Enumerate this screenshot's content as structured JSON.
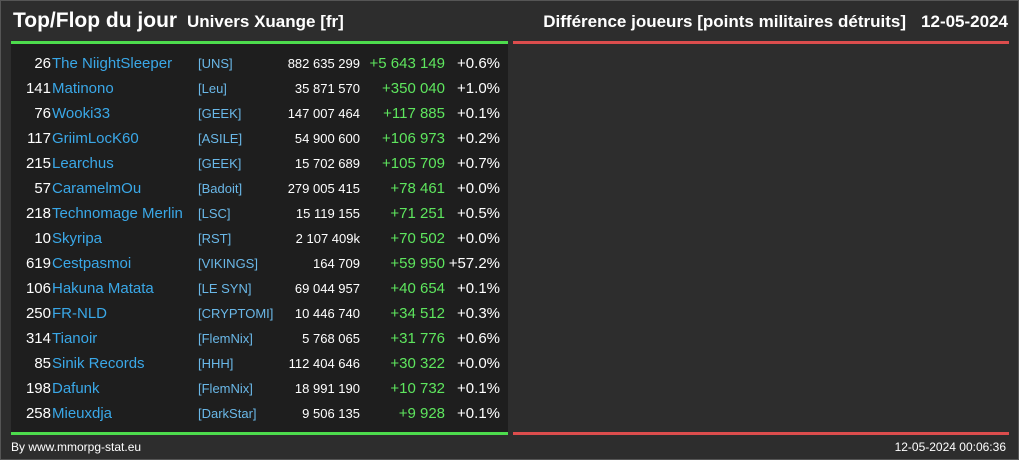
{
  "header": {
    "title": "Top/Flop du jour",
    "universe": "Univers Xuange [fr]",
    "subtitle": "Différence joueurs [points militaires détruits]",
    "date": "12-05-2024"
  },
  "colors": {
    "top_accent": "#4ddc4d",
    "flop_accent": "#dc4d4d",
    "name": "#3aa8e8",
    "positive": "#5ee65e"
  },
  "rows": [
    {
      "rank": "26",
      "name": "The NiightSleeper",
      "alliance": "[UNS]",
      "points": "882 635 299",
      "diff": "+5 643 149",
      "pct": "+0.6%"
    },
    {
      "rank": "141",
      "name": "Matinono",
      "alliance": "[Leu]",
      "points": "35 871 570",
      "diff": "+350 040",
      "pct": "+1.0%"
    },
    {
      "rank": "76",
      "name": "Wooki33",
      "alliance": "[GEEK]",
      "points": "147 007 464",
      "diff": "+117 885",
      "pct": "+0.1%"
    },
    {
      "rank": "117",
      "name": "GriimLocK60",
      "alliance": "[ASILE]",
      "points": "54 900 600",
      "diff": "+106 973",
      "pct": "+0.2%"
    },
    {
      "rank": "215",
      "name": "Learchus",
      "alliance": "[GEEK]",
      "points": "15 702 689",
      "diff": "+105 709",
      "pct": "+0.7%"
    },
    {
      "rank": "57",
      "name": "CaramelmOu",
      "alliance": "[Badoit]",
      "points": "279 005 415",
      "diff": "+78 461",
      "pct": "+0.0%"
    },
    {
      "rank": "218",
      "name": "Technomage Merlin",
      "alliance": "[LSC]",
      "points": "15 119 155",
      "diff": "+71 251",
      "pct": "+0.5%"
    },
    {
      "rank": "10",
      "name": "Skyripa",
      "alliance": "[RST]",
      "points": "2 107 409k",
      "diff": "+70 502",
      "pct": "+0.0%"
    },
    {
      "rank": "619",
      "name": "Cestpasmoi",
      "alliance": "[VIKINGS]",
      "points": "164 709",
      "diff": "+59 950",
      "pct": "+57.2%"
    },
    {
      "rank": "106",
      "name": "Hakuna Matata",
      "alliance": "[LE SYN]",
      "points": "69 044 957",
      "diff": "+40 654",
      "pct": "+0.1%"
    },
    {
      "rank": "250",
      "name": "FR-NLD",
      "alliance": "[CRYPTOMI]",
      "points": "10 446 740",
      "diff": "+34 512",
      "pct": "+0.3%"
    },
    {
      "rank": "314",
      "name": "Tianoir",
      "alliance": "[FlemNix]",
      "points": "5 768 065",
      "diff": "+31 776",
      "pct": "+0.6%"
    },
    {
      "rank": "85",
      "name": "Sinik Records",
      "alliance": "[HHH]",
      "points": "112 404 646",
      "diff": "+30 322",
      "pct": "+0.0%"
    },
    {
      "rank": "198",
      "name": "Dafunk",
      "alliance": "[FlemNix]",
      "points": "18 991 190",
      "diff": "+10 732",
      "pct": "+0.1%"
    },
    {
      "rank": "258",
      "name": "Mieuxdja",
      "alliance": "[DarkStar]",
      "points": "9 506 135",
      "diff": "+9 928",
      "pct": "+0.1%"
    }
  ],
  "footer": {
    "credit": "By www.mmorpg-stat.eu",
    "timestamp": "12-05-2024 00:06:36"
  }
}
